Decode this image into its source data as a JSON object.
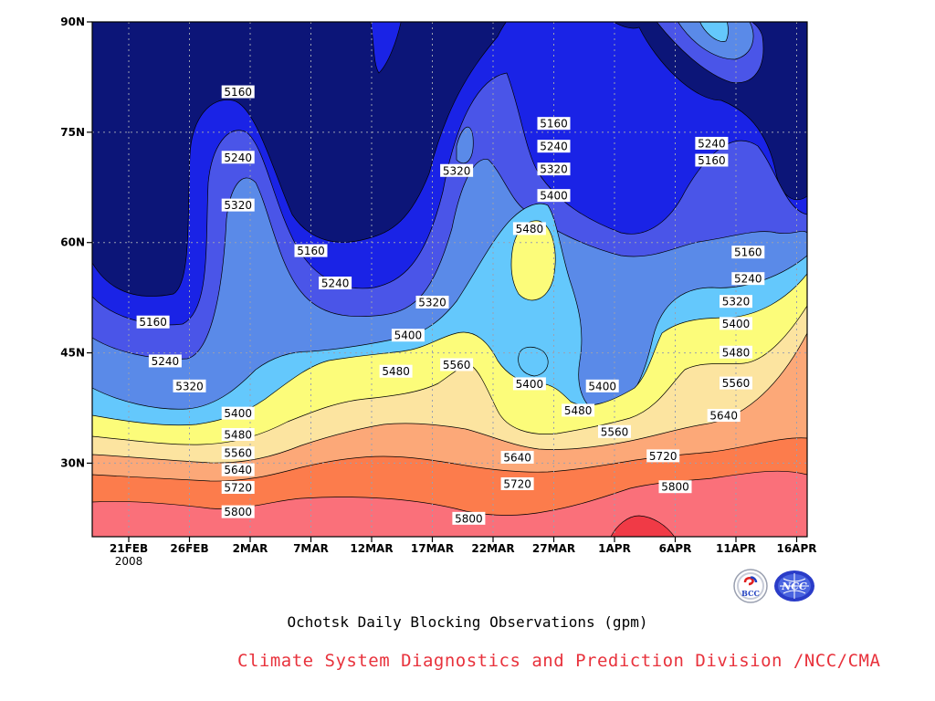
{
  "chart_data": {
    "type": "contour",
    "title": "Ochotsk Daily Blocking Observations (gpm)",
    "x_ticks": [
      "21FEB",
      "26FEB",
      "2MAR",
      "7MAR",
      "12MAR",
      "17MAR",
      "22MAR",
      "27MAR",
      "1APR",
      "6APR",
      "11APR",
      "16APR"
    ],
    "x_year": "2008",
    "y_ticks": [
      "30N",
      "45N",
      "60N",
      "75N",
      "90N"
    ],
    "y_values": [
      30,
      45,
      60,
      75,
      90
    ],
    "ylim": [
      20,
      90
    ],
    "grid": true,
    "levels": [
      5160,
      5240,
      5320,
      5400,
      5480,
      5560,
      5640,
      5720,
      5800
    ],
    "colors": {
      "below_5160": "#0c1578",
      "5160_5240": "#1a23e6",
      "5240_5320": "#4a55e8",
      "5320_5400": "#5a8ae8",
      "5400_5480": "#64c8fc",
      "5480_5560": "#fcfc7a",
      "5560_5640": "#fce4a0",
      "5640_5720": "#fca878",
      "5720_5800": "#fc7c4c",
      "5800_5880": "#fa707a",
      "above_5880": "#f03a46"
    },
    "contour_labels": [
      {
        "text": "5160",
        "date": "1MAR",
        "lat": 80.5
      },
      {
        "text": "5240",
        "date": "1MAR",
        "lat": 71.6
      },
      {
        "text": "5320",
        "date": "1MAR",
        "lat": 65.1
      },
      {
        "text": "5160",
        "date": "7MAR",
        "lat": 58.9
      },
      {
        "text": "5240",
        "date": "9MAR",
        "lat": 54.5
      },
      {
        "text": "5320",
        "date": "17MAR",
        "lat": 51.9
      },
      {
        "text": "5400",
        "date": "15MAR",
        "lat": 47.4
      },
      {
        "text": "5480",
        "date": "14MAR",
        "lat": 42.5
      },
      {
        "text": "5560",
        "date": "19MAR",
        "lat": 43.4
      },
      {
        "text": "5320",
        "date": "19MAR",
        "lat": 69.8
      },
      {
        "text": "5160",
        "date": "27MAR",
        "lat": 76.2
      },
      {
        "text": "5240",
        "date": "27MAR",
        "lat": 73.1
      },
      {
        "text": "5320",
        "date": "27MAR",
        "lat": 70.0
      },
      {
        "text": "5400",
        "date": "27MAR",
        "lat": 66.4
      },
      {
        "text": "5480",
        "date": "25MAR",
        "lat": 61.9
      },
      {
        "text": "5400",
        "date": "25MAR",
        "lat": 40.8
      },
      {
        "text": "5400",
        "date": "31MAR",
        "lat": 40.5
      },
      {
        "text": "5480",
        "date": "29MAR",
        "lat": 37.2
      },
      {
        "text": "5560",
        "date": "1APR",
        "lat": 34.3
      },
      {
        "text": "5640",
        "date": "24MAR",
        "lat": 30.8
      },
      {
        "text": "5720",
        "date": "24MAR",
        "lat": 27.2
      },
      {
        "text": "5800",
        "date": "20MAR",
        "lat": 22.5
      },
      {
        "text": "5160",
        "date": "23FEB",
        "lat": 49.2
      },
      {
        "text": "5240",
        "date": "24FEB",
        "lat": 43.9
      },
      {
        "text": "5320",
        "date": "26FEB",
        "lat": 40.5
      },
      {
        "text": "5400",
        "date": "1MAR",
        "lat": 36.8
      },
      {
        "text": "5480",
        "date": "1MAR",
        "lat": 33.9
      },
      {
        "text": "5560",
        "date": "1MAR",
        "lat": 31.4
      },
      {
        "text": "5640",
        "date": "1MAR",
        "lat": 29.1
      },
      {
        "text": "5720",
        "date": "1MAR",
        "lat": 26.7
      },
      {
        "text": "5800",
        "date": "1MAR",
        "lat": 23.4
      },
      {
        "text": "5240",
        "date": "9APR",
        "lat": 73.5
      },
      {
        "text": "5160",
        "date": "9APR",
        "lat": 71.2
      },
      {
        "text": "5160",
        "date": "12APR",
        "lat": 58.7
      },
      {
        "text": "5240",
        "date": "12APR",
        "lat": 55.1
      },
      {
        "text": "5320",
        "date": "11APR",
        "lat": 52.0
      },
      {
        "text": "5400",
        "date": "11APR",
        "lat": 49.0
      },
      {
        "text": "5480",
        "date": "11APR",
        "lat": 45.1
      },
      {
        "text": "5560",
        "date": "11APR",
        "lat": 40.9
      },
      {
        "text": "5640",
        "date": "10APR",
        "lat": 36.5
      },
      {
        "text": "5720",
        "date": "5APR",
        "lat": 31.0
      },
      {
        "text": "5800",
        "date": "6APR",
        "lat": 26.8
      }
    ]
  },
  "caption": "Ochotsk Daily Blocking Observations (gpm)",
  "credit": "Climate System Diagnostics and Prediction Division /NCC/CMA",
  "logos": {
    "bcc_text": "BCC",
    "ncc_text": "NCC"
  }
}
